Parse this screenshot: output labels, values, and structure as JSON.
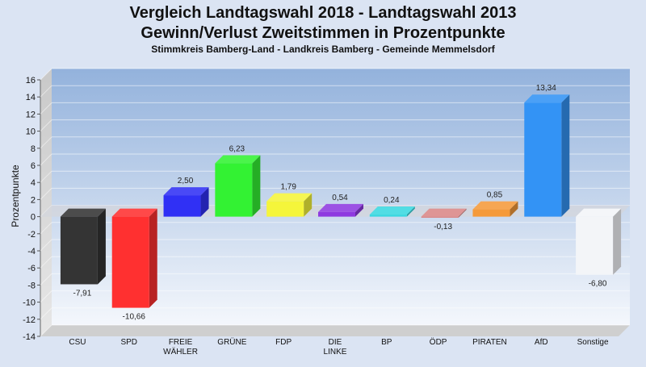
{
  "chart_data": {
    "type": "bar",
    "title_lines": [
      "Vergleich Landtagswahl 2018 - Landtagswahl 2013",
      "Gewinn/Verlust Zweitstimmen in Prozentpunkte"
    ],
    "subtitle": "Stimmkreis Bamberg-Land - Landkreis Bamberg - Gemeinde Memmelsdorf",
    "ylabel": "Prozentpunkte",
    "xlabel": "",
    "ylim": [
      -14,
      16
    ],
    "yticks": [
      "16",
      "14",
      "12",
      "10",
      "8",
      "6",
      "4",
      "2",
      "0",
      "-2",
      "-4",
      "-6",
      "-8",
      "-10",
      "-12",
      "-14"
    ],
    "categories": [
      [
        "CSU"
      ],
      [
        "SPD"
      ],
      [
        "FREIE",
        "WÄHLER"
      ],
      [
        "GRÜNE"
      ],
      [
        "FDP"
      ],
      [
        "DIE",
        "LINKE"
      ],
      [
        "BP"
      ],
      [
        "ÖDP"
      ],
      [
        "PIRATEN"
      ],
      [
        "AfD"
      ],
      [
        "Sonstige"
      ]
    ],
    "values": [
      -7.91,
      -10.66,
      2.5,
      6.23,
      1.79,
      0.54,
      0.24,
      -0.13,
      0.85,
      13.34,
      -6.8
    ],
    "value_labels": [
      "-7,91",
      "-10,66",
      "2,50",
      "6,23",
      "1,79",
      "0,54",
      "0,24",
      "-0,13",
      "0,85",
      "13,34",
      "-6,80"
    ],
    "colors": [
      "#343434",
      "#ff3030",
      "#3030f5",
      "#33f233",
      "#f5f53a",
      "#8e3ae0",
      "#3ad8e0",
      "#d98787",
      "#f59a3a",
      "#3393f5",
      "#f3f5f8"
    ],
    "grid": true,
    "legend": "none"
  }
}
